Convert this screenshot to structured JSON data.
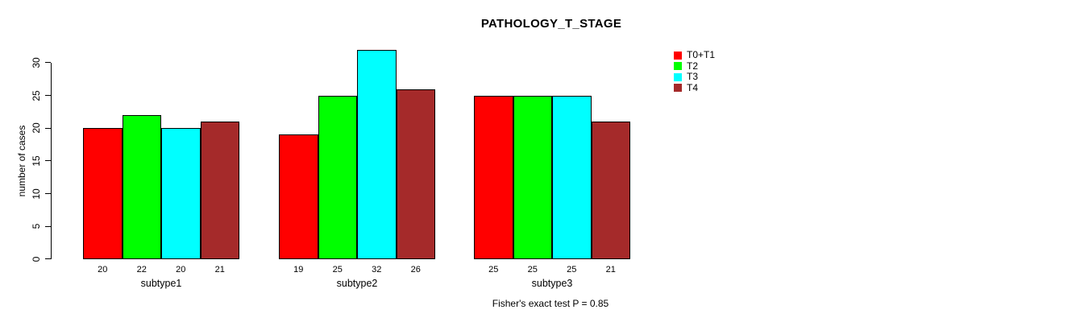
{
  "title": "PATHOLOGY_T_STAGE",
  "footnote": "Fisher's exact test P = 0.85",
  "chart_data": {
    "type": "bar",
    "title": "PATHOLOGY_T_STAGE",
    "xlabel": "",
    "ylabel": "number of cases",
    "categories": [
      "subtype1",
      "subtype2",
      "subtype3"
    ],
    "series": [
      {
        "name": "T0+T1",
        "color": "#FF0000",
        "values": [
          20,
          19,
          25
        ]
      },
      {
        "name": "T2",
        "color": "#00FF00",
        "values": [
          22,
          25,
          25
        ]
      },
      {
        "name": "T3",
        "color": "#00FFFF",
        "values": [
          20,
          32,
          25
        ]
      },
      {
        "name": "T4",
        "color": "#A52A2A",
        "values": [
          21,
          26,
          21
        ]
      }
    ],
    "bar_value_labels": {
      "subtype1": [
        20,
        22,
        20,
        21
      ],
      "subtype2": [
        19,
        25,
        32,
        26
      ],
      "subtype3": [
        25,
        25,
        25,
        21
      ]
    },
    "yticks": [
      0,
      5,
      10,
      15,
      20,
      25,
      30
    ],
    "ylim": [
      0,
      30
    ],
    "grid": false,
    "legend_position": "right",
    "annotation": "Fisher's exact test P = 0.85"
  }
}
